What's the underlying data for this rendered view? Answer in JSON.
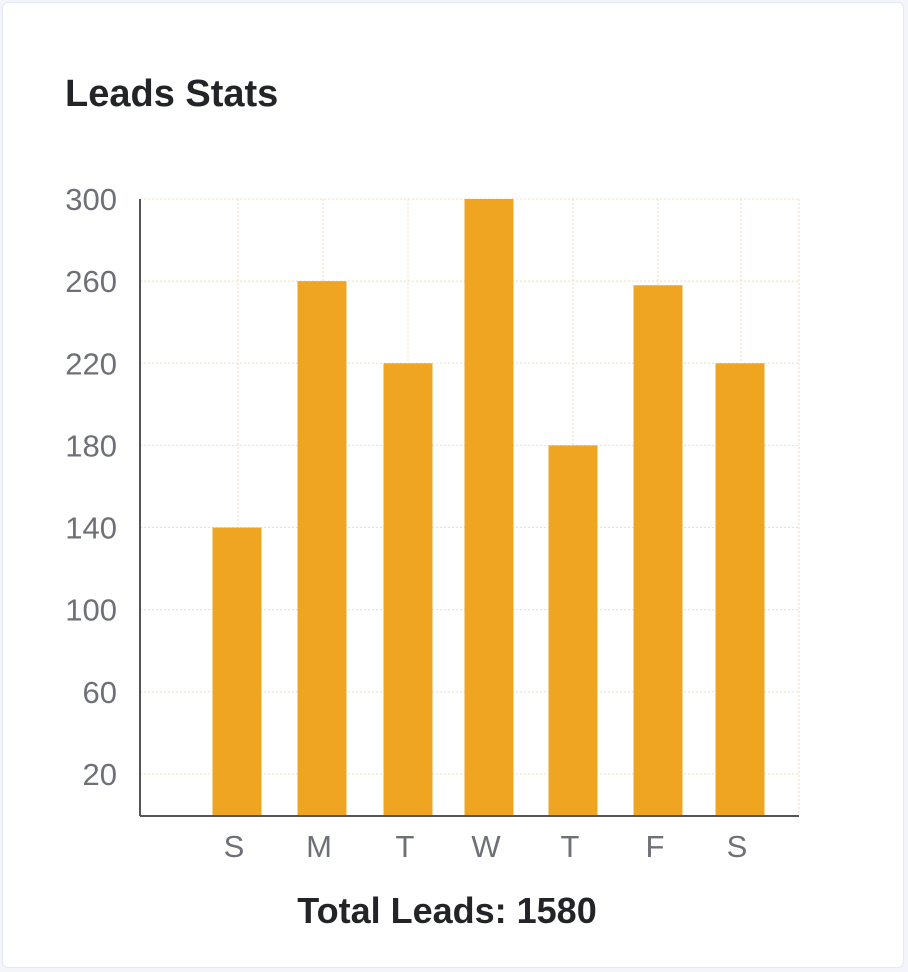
{
  "card": {
    "title": "Leads Stats",
    "total_label": "Total Leads: 1580"
  },
  "chart_data": {
    "type": "bar",
    "title": "Leads Stats",
    "categories": [
      "S",
      "M",
      "T",
      "W",
      "T",
      "F",
      "S"
    ],
    "values": [
      140,
      260,
      220,
      300,
      180,
      258,
      220
    ],
    "yticks": [
      20,
      60,
      100,
      140,
      180,
      220,
      260,
      300
    ],
    "ylim": [
      0,
      300
    ],
    "grid": true,
    "colors": {
      "bar": "#f0a522",
      "grid": "#f3dfb8",
      "axis": "#555555",
      "tick_text": "#6e7078"
    }
  }
}
